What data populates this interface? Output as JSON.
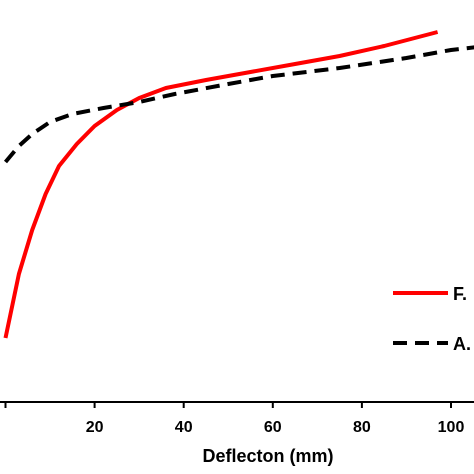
{
  "chart_data": {
    "type": "line",
    "title": "",
    "xlabel": "Deflecton (mm)",
    "ylabel": "",
    "xlim": [
      0,
      120
    ],
    "x_ticks": [
      20,
      40,
      60,
      80,
      100
    ],
    "grid": false,
    "legend_position": "bottom-right",
    "series": [
      {
        "name": "F.",
        "color": "#ff0000",
        "style": "solid",
        "x": [
          0,
          3,
          6,
          9,
          12,
          16,
          20,
          25,
          30,
          36,
          45,
          55,
          65,
          75,
          85,
          97
        ],
        "y": [
          0.16,
          0.32,
          0.43,
          0.52,
          0.59,
          0.645,
          0.69,
          0.73,
          0.76,
          0.785,
          0.805,
          0.825,
          0.845,
          0.865,
          0.89,
          0.925
        ]
      },
      {
        "name": "A.",
        "color": "#000000",
        "style": "dashed",
        "x": [
          0,
          3,
          6,
          10,
          15,
          22,
          30,
          38,
          50,
          60,
          75,
          90,
          100,
          112,
          120
        ],
        "y": [
          0.6,
          0.64,
          0.67,
          0.7,
          0.72,
          0.735,
          0.75,
          0.77,
          0.795,
          0.815,
          0.835,
          0.86,
          0.88,
          0.895,
          0.905
        ]
      }
    ]
  }
}
